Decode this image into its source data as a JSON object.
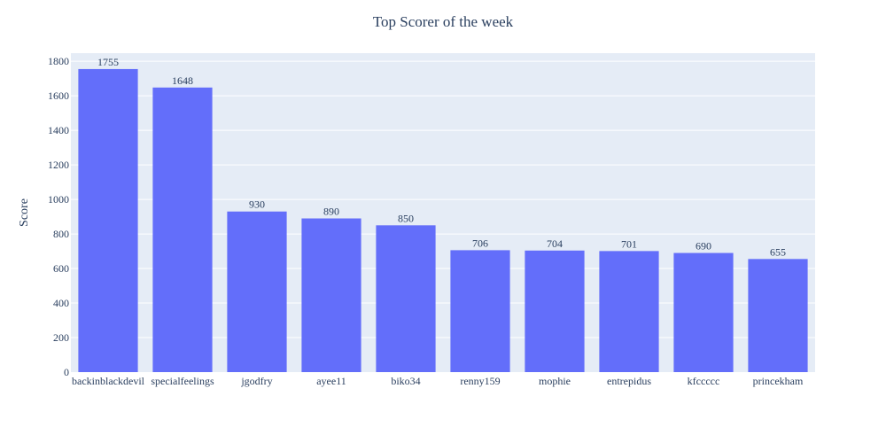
{
  "chart_data": {
    "type": "bar",
    "title": "Top Scorer of the week",
    "xlabel": "",
    "ylabel": "Score",
    "categories": [
      "backinblackdevil",
      "specialfeelings",
      "jgodfry",
      "ayee11",
      "biko34",
      "renny159",
      "mophie",
      "entrepidus",
      "kfccccc",
      "princekham"
    ],
    "values": [
      1755,
      1648,
      930,
      890,
      850,
      706,
      704,
      701,
      690,
      655
    ],
    "data_labels": [
      "1755",
      "1648",
      "930",
      "890",
      "850",
      "706",
      "704",
      "701",
      "690",
      "655"
    ],
    "ylim": [
      0,
      1847
    ],
    "yticks": [
      0,
      200,
      400,
      600,
      800,
      1000,
      1200,
      1400,
      1600,
      1800
    ],
    "ytick_labels": [
      "0",
      "200",
      "400",
      "600",
      "800",
      "1000",
      "1200",
      "1400",
      "1600",
      "1800"
    ],
    "grid": true,
    "legend": "none",
    "colors": {
      "bar": "#636efa",
      "plot_bg": "#e5ecf6",
      "text": "#2a3f5f",
      "grid": "#ffffff"
    }
  }
}
